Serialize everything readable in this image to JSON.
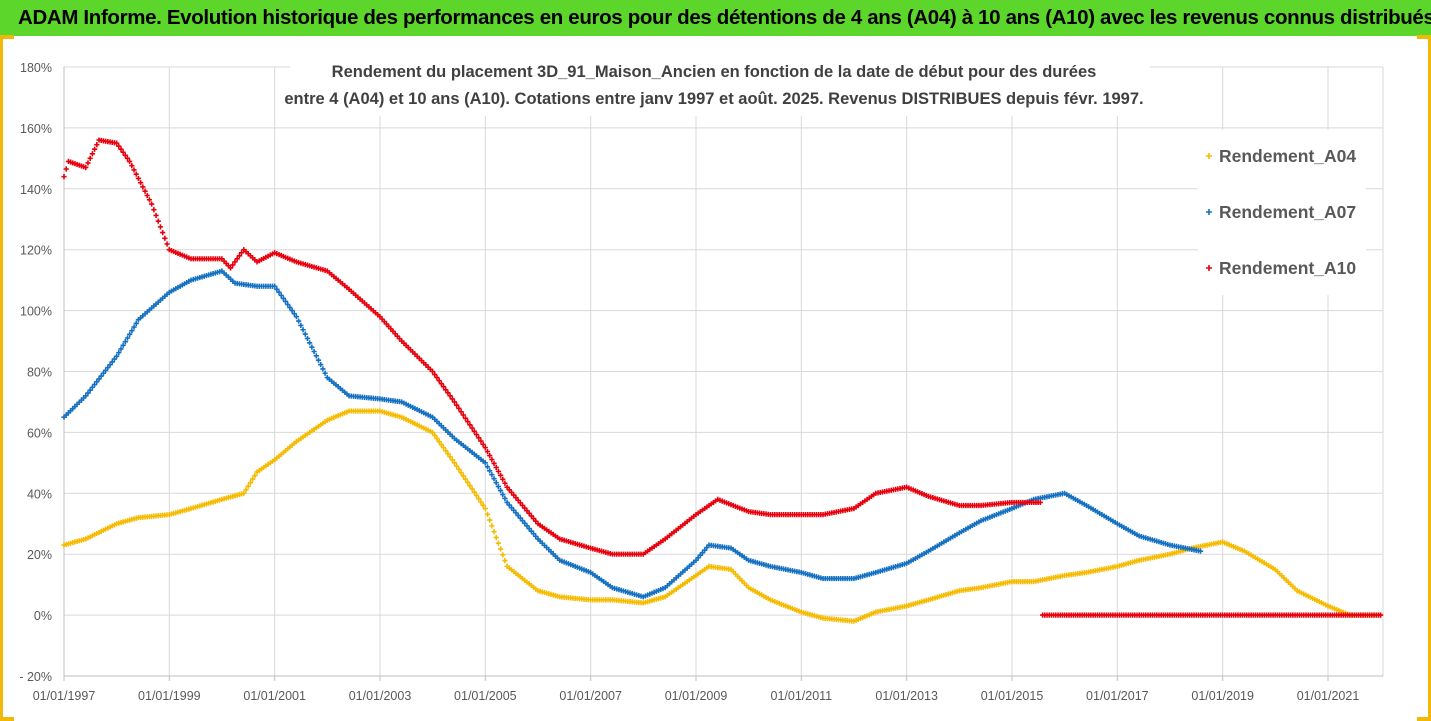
{
  "banner": {
    "title": "ADAM Informe. Evolution historique des performances en euros pour des détentions de 4 ans (A04) à 10 ans (A10) avec les revenus connus distribués"
  },
  "colors": {
    "banner": "#5dd62c",
    "frame": "#f2b807",
    "A04": "#f5bb00",
    "A07": "#1470c0",
    "A10": "#e8000c",
    "grid": "#d9d9d9"
  },
  "chart_data": {
    "type": "scatter",
    "title": "Rendement du placement 3D_91_Maison_Ancien en fonction de la date de début pour des durées",
    "subtitle": "entre 4 (A04) et 10 ans (A10). Cotations entre janv 1997 et août. 2025. Revenus DISTRIBUES depuis févr. 1997.",
    "xlabel": "",
    "ylabel": "",
    "x_tick_labels": [
      "01/01/1997",
      "01/01/1999",
      "01/01/2001",
      "01/01/2003",
      "01/01/2005",
      "01/01/2007",
      "01/01/2009",
      "01/01/2011",
      "01/01/2013",
      "01/01/2015",
      "01/01/2017",
      "01/01/2019",
      "01/01/2021"
    ],
    "x_range": [
      "1997-01-01",
      "2022-01-01"
    ],
    "y_tick_labels": [
      "180%",
      "160%",
      "140%",
      "120%",
      "100%",
      "80%",
      "60%",
      "40%",
      "20%",
      "0%",
      "- 20%"
    ],
    "ylim": [
      -20,
      180
    ],
    "y_unit": "%",
    "grid": true,
    "legend_position": "right",
    "series": [
      {
        "name": "Rendement_A04",
        "points": [
          [
            "1997-01-01",
            23
          ],
          [
            "1997-06-01",
            25
          ],
          [
            "1998-01-01",
            30
          ],
          [
            "1998-06-01",
            32
          ],
          [
            "1999-01-01",
            33
          ],
          [
            "1999-06-01",
            35
          ],
          [
            "2000-01-01",
            38
          ],
          [
            "2000-06-01",
            40
          ],
          [
            "2000-09-01",
            47
          ],
          [
            "2001-01-01",
            51
          ],
          [
            "2001-06-01",
            57
          ],
          [
            "2002-01-01",
            64
          ],
          [
            "2002-06-01",
            67
          ],
          [
            "2003-01-01",
            67
          ],
          [
            "2003-06-01",
            65
          ],
          [
            "2004-01-01",
            60
          ],
          [
            "2004-06-01",
            50
          ],
          [
            "2005-01-01",
            35
          ],
          [
            "2005-06-01",
            16
          ],
          [
            "2006-01-01",
            8
          ],
          [
            "2006-06-01",
            6
          ],
          [
            "2007-01-01",
            5
          ],
          [
            "2007-06-01",
            5
          ],
          [
            "2008-01-01",
            4
          ],
          [
            "2008-06-01",
            6
          ],
          [
            "2009-01-01",
            13
          ],
          [
            "2009-04-01",
            16
          ],
          [
            "2009-09-01",
            15
          ],
          [
            "2010-01-01",
            9
          ],
          [
            "2010-06-01",
            5
          ],
          [
            "2011-01-01",
            1
          ],
          [
            "2011-06-01",
            -1
          ],
          [
            "2012-01-01",
            -2
          ],
          [
            "2012-06-01",
            1
          ],
          [
            "2013-01-01",
            3
          ],
          [
            "2013-06-01",
            5
          ],
          [
            "2014-01-01",
            8
          ],
          [
            "2014-06-01",
            9
          ],
          [
            "2015-01-01",
            11
          ],
          [
            "2015-06-01",
            11
          ],
          [
            "2016-01-01",
            13
          ],
          [
            "2016-06-01",
            14
          ],
          [
            "2017-01-01",
            16
          ],
          [
            "2017-06-01",
            18
          ],
          [
            "2018-01-01",
            20
          ],
          [
            "2018-06-01",
            22
          ],
          [
            "2019-01-01",
            24
          ],
          [
            "2019-06-01",
            21
          ],
          [
            "2020-01-01",
            15
          ],
          [
            "2020-06-01",
            8
          ],
          [
            "2021-01-01",
            3
          ],
          [
            "2021-06-01",
            0
          ],
          [
            "2022-01-01",
            0
          ]
        ]
      },
      {
        "name": "Rendement_A07",
        "points": [
          [
            "1997-01-01",
            65
          ],
          [
            "1997-06-01",
            72
          ],
          [
            "1998-01-01",
            85
          ],
          [
            "1998-06-01",
            97
          ],
          [
            "1999-01-01",
            106
          ],
          [
            "1999-06-01",
            110
          ],
          [
            "2000-01-01",
            113
          ],
          [
            "2000-04-01",
            109
          ],
          [
            "2000-09-01",
            108
          ],
          [
            "2001-01-01",
            108
          ],
          [
            "2001-06-01",
            98
          ],
          [
            "2002-01-01",
            78
          ],
          [
            "2002-06-01",
            72
          ],
          [
            "2003-01-01",
            71
          ],
          [
            "2003-06-01",
            70
          ],
          [
            "2004-01-01",
            65
          ],
          [
            "2004-06-01",
            58
          ],
          [
            "2005-01-01",
            50
          ],
          [
            "2005-06-01",
            37
          ],
          [
            "2006-01-01",
            25
          ],
          [
            "2006-06-01",
            18
          ],
          [
            "2007-01-01",
            14
          ],
          [
            "2007-06-01",
            9
          ],
          [
            "2008-01-01",
            6
          ],
          [
            "2008-06-01",
            9
          ],
          [
            "2009-01-01",
            18
          ],
          [
            "2009-04-01",
            23
          ],
          [
            "2009-09-01",
            22
          ],
          [
            "2010-01-01",
            18
          ],
          [
            "2010-06-01",
            16
          ],
          [
            "2011-01-01",
            14
          ],
          [
            "2011-06-01",
            12
          ],
          [
            "2012-01-01",
            12
          ],
          [
            "2012-06-01",
            14
          ],
          [
            "2013-01-01",
            17
          ],
          [
            "2013-06-01",
            21
          ],
          [
            "2014-01-01",
            27
          ],
          [
            "2014-06-01",
            31
          ],
          [
            "2015-01-01",
            35
          ],
          [
            "2015-06-01",
            38
          ],
          [
            "2016-01-01",
            40
          ],
          [
            "2016-06-01",
            36
          ],
          [
            "2017-01-01",
            30
          ],
          [
            "2017-06-01",
            26
          ],
          [
            "2018-01-01",
            23
          ],
          [
            "2018-08-01",
            21
          ]
        ]
      },
      {
        "name": "Rendement_A10",
        "points": [
          [
            "1997-01-01",
            144
          ],
          [
            "1997-02-01",
            149
          ],
          [
            "1997-06-01",
            147
          ],
          [
            "1997-09-01",
            156
          ],
          [
            "1998-01-01",
            155
          ],
          [
            "1998-04-01",
            149
          ],
          [
            "1998-09-01",
            135
          ],
          [
            "1999-01-01",
            120
          ],
          [
            "1999-06-01",
            117
          ],
          [
            "2000-01-01",
            117
          ],
          [
            "2000-03-01",
            114
          ],
          [
            "2000-06-01",
            120
          ],
          [
            "2000-09-01",
            116
          ],
          [
            "2001-01-01",
            119
          ],
          [
            "2001-06-01",
            116
          ],
          [
            "2002-01-01",
            113
          ],
          [
            "2002-06-01",
            107
          ],
          [
            "2003-01-01",
            98
          ],
          [
            "2003-06-01",
            90
          ],
          [
            "2004-01-01",
            80
          ],
          [
            "2004-06-01",
            70
          ],
          [
            "2005-01-01",
            55
          ],
          [
            "2005-06-01",
            42
          ],
          [
            "2006-01-01",
            30
          ],
          [
            "2006-06-01",
            25
          ],
          [
            "2007-01-01",
            22
          ],
          [
            "2007-06-01",
            20
          ],
          [
            "2008-01-01",
            20
          ],
          [
            "2008-06-01",
            25
          ],
          [
            "2009-01-01",
            33
          ],
          [
            "2009-06-01",
            38
          ],
          [
            "2010-01-01",
            34
          ],
          [
            "2010-06-01",
            33
          ],
          [
            "2011-01-01",
            33
          ],
          [
            "2011-06-01",
            33
          ],
          [
            "2012-01-01",
            35
          ],
          [
            "2012-06-01",
            40
          ],
          [
            "2013-01-01",
            42
          ],
          [
            "2013-06-01",
            39
          ],
          [
            "2014-01-01",
            36
          ],
          [
            "2014-06-01",
            36
          ],
          [
            "2015-01-01",
            37
          ],
          [
            "2015-08-01",
            37
          ],
          [
            "2015-08-02",
            0
          ],
          [
            "2022-01-01",
            0
          ]
        ]
      }
    ]
  }
}
